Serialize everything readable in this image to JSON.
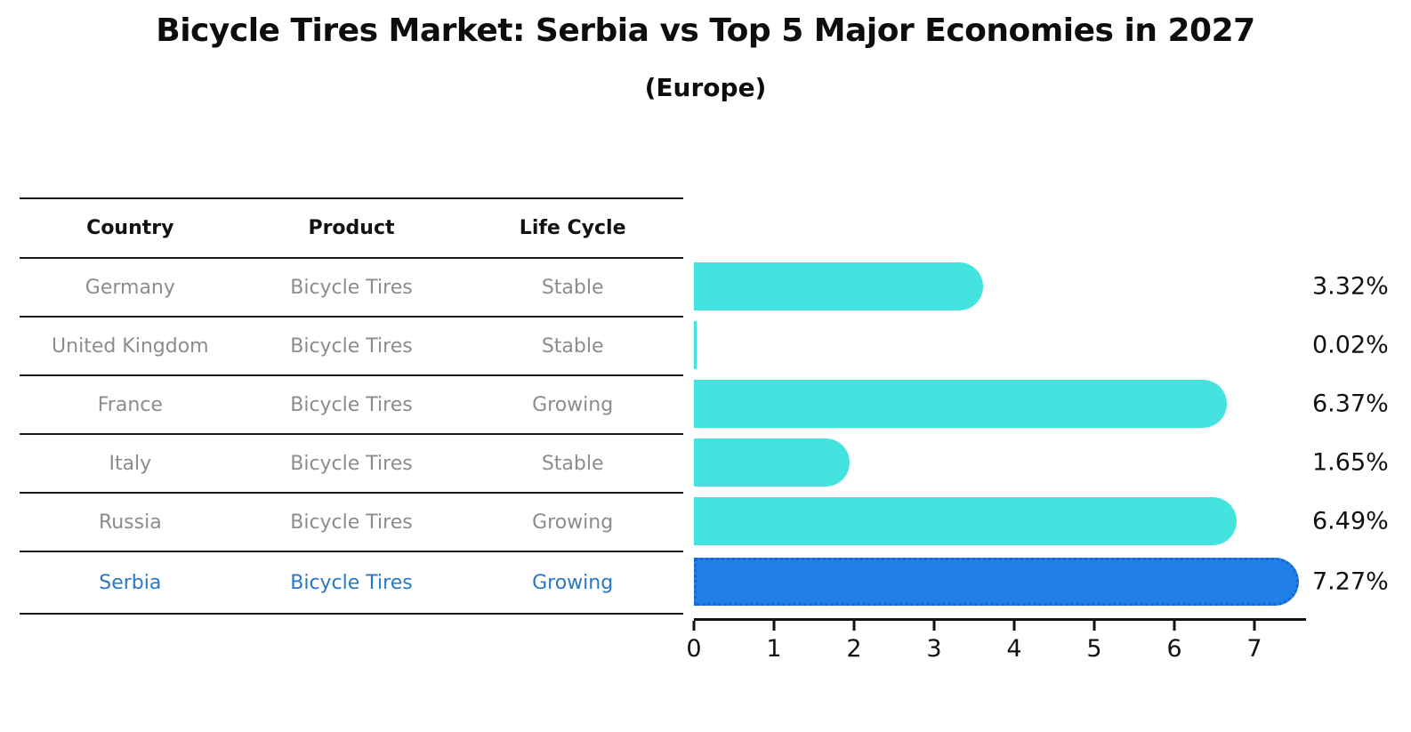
{
  "title": "Bicycle Tires Market: Serbia vs Top 5 Major Economies in 2027",
  "subtitle": "(Europe)",
  "table": {
    "headers": [
      "Country",
      "Product",
      "Life Cycle"
    ],
    "rows": [
      {
        "country": "Germany",
        "product": "Bicycle Tires",
        "life_cycle": "Stable",
        "highlight": false
      },
      {
        "country": "United Kingdom",
        "product": "Bicycle Tires",
        "life_cycle": "Stable",
        "highlight": false
      },
      {
        "country": "France",
        "product": "Bicycle Tires",
        "life_cycle": "Growing",
        "highlight": false
      },
      {
        "country": "Italy",
        "product": "Bicycle Tires",
        "life_cycle": "Stable",
        "highlight": false
      },
      {
        "country": "Russia",
        "product": "Bicycle Tires",
        "life_cycle": "Growing",
        "highlight": false
      },
      {
        "country": "Serbia",
        "product": "Bicycle Tires",
        "life_cycle": "Growing",
        "highlight": true
      }
    ]
  },
  "chart_data": {
    "type": "bar",
    "orientation": "horizontal",
    "title": "Bicycle Tires Market: Serbia vs Top 5 Major Economies in 2027",
    "subtitle": "(Europe)",
    "categories": [
      "Germany",
      "United Kingdom",
      "France",
      "Italy",
      "Russia",
      "Serbia"
    ],
    "values": [
      3.32,
      0.02,
      6.37,
      1.65,
      6.49,
      7.27
    ],
    "value_labels": [
      "3.32%",
      "0.02%",
      "6.37%",
      "1.65%",
      "6.49%",
      "7.27%"
    ],
    "xticks": [
      0,
      1,
      2,
      3,
      4,
      5,
      6,
      7
    ],
    "xlim": [
      0,
      7.6
    ],
    "grid": false,
    "legend": false,
    "highlight_index": 5,
    "bar_color": "#45e3df",
    "highlight_color": "#2080e8",
    "highlight_border_color": "#1565d2",
    "highlight_text_color": "#2878c8",
    "row_text_color": "#8c8c8c",
    "axis_color": "#111111"
  }
}
